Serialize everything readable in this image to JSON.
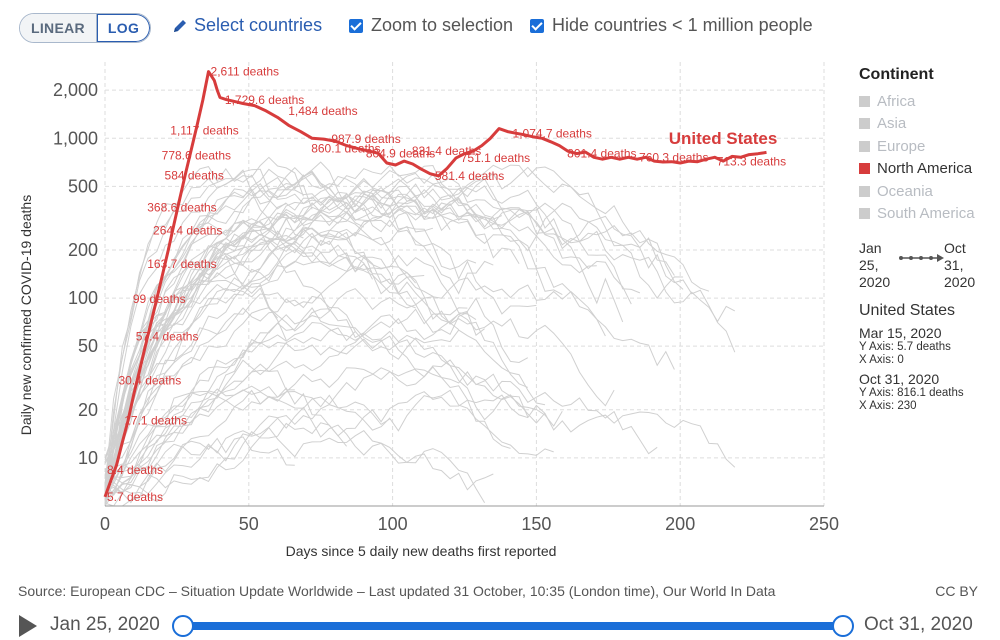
{
  "toolbar": {
    "linear_label": "LINEAR",
    "log_label": "LOG",
    "select_countries_label": "Select countries",
    "zoom_label": "Zoom to selection",
    "hide_label": "Hide countries < 1 million people"
  },
  "chart_data": {
    "type": "line",
    "title": "",
    "xlabel": "Days since 5 daily new deaths first reported",
    "ylabel": "Daily new confirmed COVID-19 deaths",
    "x_scale": "linear",
    "y_scale": "log",
    "xlim": [
      0,
      250
    ],
    "ylim": [
      5,
      3000
    ],
    "x_ticks": [
      0,
      50,
      100,
      150,
      200,
      250
    ],
    "x_tick_labels": [
      "0",
      "50",
      "100",
      "150",
      "200",
      "250"
    ],
    "y_ticks": [
      10,
      20,
      50,
      100,
      200,
      500,
      1000,
      2000
    ],
    "y_tick_labels": [
      "10",
      "20",
      "50",
      "100",
      "200",
      "500",
      "1,000",
      "2,000"
    ],
    "grid": true,
    "highlight_color": "#d73c3c",
    "background_line_color": "#d0d0d0",
    "series": [
      {
        "name": "United States",
        "color": "#d73c3c",
        "x": [
          0,
          2,
          4,
          6,
          8,
          10,
          12,
          14,
          16,
          18,
          20,
          22,
          24,
          26,
          28,
          30,
          32,
          34,
          36,
          38,
          39,
          40,
          42,
          45,
          48,
          52,
          56,
          60,
          64,
          68,
          72,
          76,
          80,
          84,
          88,
          92,
          95,
          98,
          101,
          104,
          107,
          110,
          113,
          116,
          119,
          122,
          125,
          128,
          131,
          134,
          137,
          140,
          143,
          146,
          149,
          152,
          155,
          158,
          161,
          164,
          167,
          170,
          173,
          176,
          179,
          182,
          185,
          188,
          191,
          194,
          197,
          200,
          203,
          206,
          209,
          212,
          215,
          218,
          221,
          224,
          227,
          230
        ],
        "y": [
          5.7,
          7.2,
          9.0,
          12.5,
          17.1,
          25,
          35,
          50,
          70,
          99,
          140,
          200,
          290,
          420,
          600,
          850,
          1200,
          1729.6,
          2611,
          2300,
          2000,
          1800,
          1750,
          1700,
          1650,
          1600,
          1484,
          1350,
          1200,
          1100,
          1000,
          987.9,
          960,
          900,
          860.1,
          830,
          804.9,
          700,
          680,
          720,
          690,
          640,
          600,
          581.4,
          650,
          751.1,
          800,
          831.4,
          900,
          1000,
          1150,
          1100,
          1074.7,
          1050,
          1020,
          1000,
          950,
          900,
          830,
          801.4,
          820,
          760,
          740,
          760.3,
          740,
          760,
          740,
          760.3,
          720,
          710,
          713.3,
          700,
          720,
          713.3,
          740,
          760,
          720,
          770,
          760,
          790,
          800,
          816.1
        ],
        "label": "United States",
        "label_x": 196,
        "label_y": 920
      }
    ],
    "annotations": [
      {
        "text": "2,611 deaths",
        "x": 36,
        "y": 2611
      },
      {
        "text": "1,729.6 deaths",
        "x": 41,
        "y": 1729.6
      },
      {
        "text": "1,484 deaths",
        "x": 63,
        "y": 1484
      },
      {
        "text": "1,117 deaths",
        "x": 22,
        "y": 1117
      },
      {
        "text": "987.9 deaths",
        "x": 78,
        "y": 987.9
      },
      {
        "text": "860.1 deaths",
        "x": 71,
        "y": 860.1
      },
      {
        "text": "831.4 deaths",
        "x": 106,
        "y": 831.4
      },
      {
        "text": "1,074.7 deaths",
        "x": 141,
        "y": 1074.7
      },
      {
        "text": "804.9 deaths",
        "x": 90,
        "y": 804.9
      },
      {
        "text": "751.1 deaths",
        "x": 123,
        "y": 751.1
      },
      {
        "text": "801.4 deaths",
        "x": 160,
        "y": 801.4
      },
      {
        "text": "778.6 deaths",
        "x": 19,
        "y": 778.6
      },
      {
        "text": "760.3 deaths",
        "x": 185,
        "y": 760.3
      },
      {
        "text": "713.3 deaths",
        "x": 212,
        "y": 713.3
      },
      {
        "text": "581.4 deaths",
        "x": 114,
        "y": 581.4
      },
      {
        "text": "584 deaths",
        "x": 20,
        "y": 584
      },
      {
        "text": "368.6 deaths",
        "x": 14,
        "y": 368.6
      },
      {
        "text": "264.4 deaths",
        "x": 16,
        "y": 264.4
      },
      {
        "text": "163.7 deaths",
        "x": 14,
        "y": 163.7
      },
      {
        "text": "99 deaths",
        "x": 9,
        "y": 99
      },
      {
        "text": "57.4 deaths",
        "x": 10,
        "y": 57.4
      },
      {
        "text": "30.4 deaths",
        "x": 4,
        "y": 30.4
      },
      {
        "text": "17.1 deaths",
        "x": 6,
        "y": 17.1
      },
      {
        "text": "8.4 deaths",
        "x": 0,
        "y": 8.4
      },
      {
        "text": "5.7 deaths",
        "x": 0,
        "y": 5.7
      }
    ],
    "legend": {
      "title": "Continent",
      "placement": "right",
      "items": [
        {
          "label": "Africa",
          "active": false
        },
        {
          "label": "Asia",
          "active": false
        },
        {
          "label": "Europe",
          "active": false
        },
        {
          "label": "North America",
          "active": true
        },
        {
          "label": "Oceania",
          "active": false
        },
        {
          "label": "South America",
          "active": false
        }
      ]
    }
  },
  "range": {
    "from_month_day": "Jan 25,",
    "from_year": "2020",
    "to_month_day": "Oct 31,",
    "to_year": "2020"
  },
  "tooltip": {
    "country": "United States",
    "start": {
      "date": "Mar 15, 2020",
      "y": "Y Axis: 5.7 deaths",
      "x": "X Axis: 0"
    },
    "end": {
      "date": "Oct 31, 2020",
      "y": "Y Axis: 816.1 deaths",
      "x": "X Axis: 230"
    }
  },
  "source": "Source: European CDC – Situation Update Worldwide – Last updated 31 October, 10:35 (London time), Our World In Data",
  "license": "CC BY",
  "timeline": {
    "start_label": "Jan 25, 2020",
    "end_label": "Oct 31, 2020",
    "start_fraction": 0,
    "end_fraction": 1
  }
}
